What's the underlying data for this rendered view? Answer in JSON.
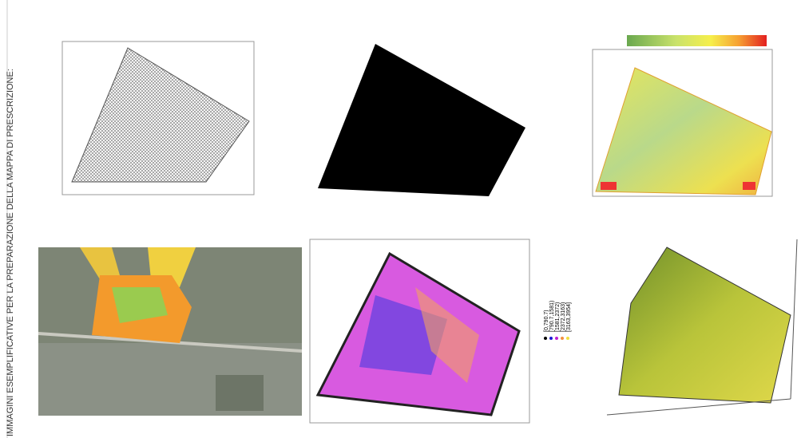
{
  "header": {
    "title": "IMMAGINI ESEMPLIFICATIVE PER LA PREPARAZIONE DELLA MAPPA DI PRESCRIZIONE:"
  },
  "legend": {
    "items": [
      "[0,790.7)",
      "[790.7,1581)",
      "[1581,2372)",
      "[2372,3163)",
      "[3163,3954]"
    ]
  }
}
